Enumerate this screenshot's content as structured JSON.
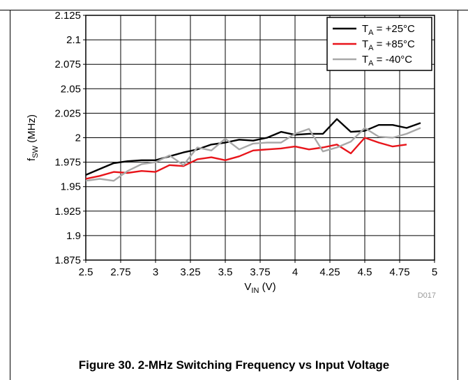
{
  "chart_data": {
    "type": "line",
    "xlabel": "V",
    "xlabel_sub": "IN",
    "xlabel_unit": " (V)",
    "ylabel": "f",
    "ylabel_sub": "SW",
    "ylabel_unit": " (MHz)",
    "xlim": [
      2.5,
      5
    ],
    "ylim": [
      1.875,
      2.125
    ],
    "xticks": [
      "2.5",
      "2.75",
      "3",
      "3.25",
      "3.5",
      "3.75",
      "4",
      "4.25",
      "4.5",
      "4.75",
      "5"
    ],
    "yticks": [
      "1.875",
      "1.9",
      "1.925",
      "1.95",
      "1.975",
      "2",
      "2.025",
      "2.05",
      "2.075",
      "2.1",
      "2.125"
    ],
    "grid": true,
    "legend_position": "top-right",
    "code": "D017",
    "series": [
      {
        "name": "T",
        "sub": "A",
        "suffix": " = +25°C",
        "color": "#000000",
        "x": [
          2.5,
          2.6,
          2.7,
          2.8,
          2.9,
          3.0,
          3.1,
          3.2,
          3.3,
          3.4,
          3.5,
          3.6,
          3.7,
          3.8,
          3.9,
          4.0,
          4.1,
          4.2,
          4.3,
          4.4,
          4.5,
          4.6,
          4.7,
          4.8,
          4.9
        ],
        "y": [
          1.962,
          1.968,
          1.974,
          1.976,
          1.977,
          1.977,
          1.981,
          1.985,
          1.988,
          1.993,
          1.995,
          1.998,
          1.997,
          2.0,
          2.006,
          2.003,
          2.004,
          2.004,
          2.019,
          2.006,
          2.007,
          2.013,
          2.013,
          2.01,
          2.015
        ]
      },
      {
        "name": "T",
        "sub": "A",
        "suffix": " = +85°C",
        "color": "#e8141a",
        "x": [
          2.5,
          2.6,
          2.7,
          2.8,
          2.9,
          3.0,
          3.1,
          3.2,
          3.3,
          3.4,
          3.5,
          3.6,
          3.7,
          3.8,
          3.9,
          4.0,
          4.1,
          4.2,
          4.3,
          4.4,
          4.5,
          4.6,
          4.7,
          4.8
        ],
        "y": [
          1.958,
          1.961,
          1.965,
          1.964,
          1.966,
          1.965,
          1.972,
          1.971,
          1.978,
          1.98,
          1.977,
          1.981,
          1.987,
          1.988,
          1.989,
          1.991,
          1.988,
          1.99,
          1.993,
          1.984,
          2.0,
          1.995,
          1.991,
          1.993
        ]
      },
      {
        "name": "T",
        "sub": "A",
        "suffix": " = -40°C",
        "color": "#a8a8a8",
        "x": [
          2.5,
          2.6,
          2.7,
          2.8,
          2.9,
          3.0,
          3.1,
          3.2,
          3.3,
          3.4,
          3.5,
          3.6,
          3.7,
          3.8,
          3.9,
          4.0,
          4.1,
          4.2,
          4.3,
          4.4,
          4.5,
          4.6,
          4.7,
          4.8,
          4.9
        ],
        "y": [
          1.956,
          1.958,
          1.956,
          1.966,
          1.973,
          1.975,
          1.982,
          1.972,
          1.99,
          1.987,
          1.999,
          1.988,
          1.994,
          1.995,
          1.995,
          2.004,
          2.009,
          1.986,
          1.99,
          1.996,
          2.01,
          2.001,
          2.0,
          2.004,
          2.01
        ]
      }
    ]
  },
  "caption": "Figure 30. 2-MHz Switching Frequency vs Input Voltage"
}
